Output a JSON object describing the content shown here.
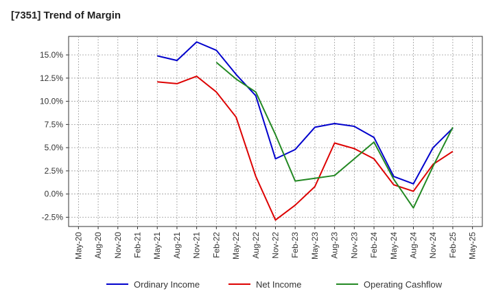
{
  "chart_data": {
    "type": "line",
    "title": "[7351]  Trend of Margin",
    "xlabel": "",
    "ylabel": "",
    "categories": [
      "May-20",
      "Aug-20",
      "Nov-20",
      "Feb-21",
      "May-21",
      "Aug-21",
      "Nov-21",
      "Feb-22",
      "May-22",
      "Aug-22",
      "Nov-22",
      "Feb-23",
      "May-23",
      "Aug-23",
      "Nov-23",
      "Feb-24",
      "May-24",
      "Aug-24",
      "Nov-24",
      "Feb-25",
      "May-25"
    ],
    "ylim": [
      -3.5,
      17.0
    ],
    "yticks": [
      -2.5,
      0.0,
      2.5,
      5.0,
      7.5,
      10.0,
      12.5,
      15.0
    ],
    "ytick_labels": [
      "-2.5%",
      "0.0%",
      "2.5%",
      "5.0%",
      "7.5%",
      "10.0%",
      "12.5%",
      "15.0%"
    ],
    "grid": true,
    "legend_position": "bottom",
    "series": [
      {
        "name": "Ordinary Income",
        "color": "#0000cc",
        "values": [
          null,
          null,
          null,
          null,
          14.9,
          14.4,
          16.4,
          15.5,
          12.9,
          10.6,
          3.8,
          4.8,
          7.2,
          7.6,
          7.3,
          6.1,
          1.9,
          1.1,
          5.0,
          7.1,
          null
        ]
      },
      {
        "name": "Net Income",
        "color": "#dd0000",
        "values": [
          null,
          null,
          null,
          null,
          12.1,
          11.9,
          12.7,
          11.0,
          8.3,
          1.9,
          -2.8,
          -1.2,
          0.8,
          5.5,
          4.9,
          3.8,
          1.0,
          0.3,
          3.2,
          4.6,
          null
        ]
      },
      {
        "name": "Operating Cashflow",
        "color": "#228822",
        "values": [
          null,
          null,
          null,
          null,
          null,
          null,
          null,
          14.2,
          12.4,
          11.0,
          6.4,
          1.4,
          1.7,
          2.0,
          3.8,
          5.6,
          1.6,
          -1.5,
          3.0,
          7.2,
          null
        ]
      }
    ]
  }
}
